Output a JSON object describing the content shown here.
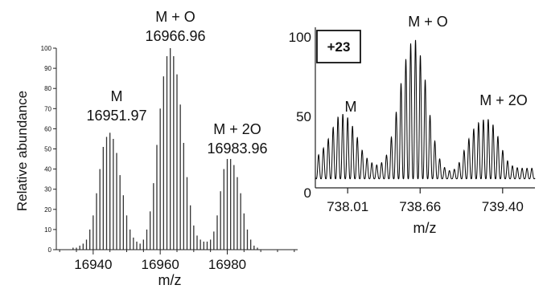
{
  "chart_data": [
    {
      "type": "bar",
      "panel": "deconvoluted",
      "xlabel": "m/z",
      "ylabel": "Relative abundance",
      "xlim": [
        16929,
        17001
      ],
      "ylim": [
        0,
        100
      ],
      "xticks": [
        16940,
        16960,
        16980
      ],
      "yticks": [
        0,
        10,
        20,
        30,
        40,
        50,
        60,
        70,
        80,
        90,
        100
      ],
      "x": [
        16930,
        16931,
        16932,
        16933,
        16934,
        16935,
        16936,
        16937,
        16938,
        16939,
        16940,
        16941,
        16942,
        16943,
        16944,
        16945,
        16946,
        16947,
        16948,
        16949,
        16950,
        16951,
        16952,
        16953,
        16954,
        16955,
        16956,
        16957,
        16958,
        16959,
        16960,
        16961,
        16962,
        16963,
        16964,
        16965,
        16966,
        16967,
        16968,
        16969,
        16970,
        16971,
        16972,
        16973,
        16974,
        16975,
        16976,
        16977,
        16978,
        16979,
        16980,
        16981,
        16982,
        16983,
        16984,
        16985,
        16986,
        16987,
        16988,
        16989,
        16990,
        16991,
        16992,
        16993,
        16994,
        16995,
        16996,
        16997,
        16998,
        16999,
        17000
      ],
      "values": [
        0,
        0,
        0,
        0,
        1,
        1,
        2,
        3,
        5,
        10,
        17,
        28,
        40,
        51,
        56,
        58,
        55,
        48,
        37,
        27,
        17,
        10,
        6,
        4,
        3,
        5,
        10,
        19,
        33,
        52,
        70,
        86,
        96,
        100,
        96,
        87,
        72,
        53,
        36,
        22,
        12,
        7,
        5,
        4,
        4,
        5,
        9,
        17,
        29,
        40,
        45,
        45,
        42,
        36,
        28,
        18,
        10,
        5,
        2,
        1,
        0,
        0,
        0,
        0,
        0,
        0,
        0,
        0,
        0,
        0,
        0
      ],
      "peak_labels": [
        {
          "name": "M",
          "mass": "16951.97"
        },
        {
          "name": "M + O",
          "mass": "16966.96"
        },
        {
          "name": "M + 2O",
          "mass": "16983.96"
        }
      ]
    },
    {
      "type": "line",
      "panel": "charge-state",
      "charge_label": "+23",
      "xlabel": "m/z",
      "xlim": [
        737.72,
        739.69
      ],
      "ylim": [
        0,
        100
      ],
      "xticks": [
        "738.01",
        "738.66",
        "739.40"
      ],
      "yticks": [
        0,
        50,
        100
      ],
      "envelope": {
        "x": [
          737.72,
          737.75,
          737.79,
          737.84,
          737.89,
          737.93,
          737.97,
          738.02,
          738.06,
          738.11,
          738.15,
          738.2,
          738.24,
          738.28,
          738.32,
          738.36,
          738.4,
          738.44,
          738.48,
          738.52,
          738.56,
          738.6,
          738.64,
          738.67,
          738.71,
          738.74,
          738.78,
          738.82,
          738.86,
          738.9,
          738.94,
          738.98,
          739.02,
          739.06,
          739.1,
          739.14,
          739.18,
          739.22,
          739.26,
          739.3,
          739.34,
          739.38,
          739.42,
          739.46,
          739.5,
          739.55,
          739.6,
          739.65,
          739.69
        ],
        "y": [
          20,
          22,
          26,
          33,
          42,
          48,
          49,
          46,
          40,
          31,
          23,
          18,
          16,
          15,
          17,
          22,
          33,
          48,
          66,
          82,
          93,
          100,
          96,
          85,
          70,
          52,
          35,
          22,
          15,
          12,
          11,
          13,
          18,
          26,
          33,
          39,
          43,
          45,
          46,
          44,
          38,
          29,
          21,
          16,
          14,
          13,
          13,
          13,
          13
        ]
      }
    }
  ],
  "labels": {
    "left_M": "M",
    "left_M_mass": "16951.97",
    "left_MO": "M + O",
    "left_MO_mass": "16966.96",
    "left_M2O": "M + 2O",
    "left_M2O_mass": "16983.96",
    "right_M": "M",
    "right_MO": "M + O",
    "right_M2O": "M + 2O"
  },
  "left_tick_labels": [
    "16940",
    "16960",
    "16980"
  ],
  "left_y_tick_labels": [
    "0",
    "10",
    "20",
    "30",
    "40",
    "50",
    "60",
    "70",
    "80",
    "90",
    "100"
  ],
  "right_tick_labels": [
    "738.01",
    "738.66",
    "739.40"
  ],
  "right_y_tick_labels": [
    "0",
    "50",
    "100"
  ],
  "left_xlabel": "m/z",
  "left_ylabel": "Relative abundance",
  "right_xlabel": "m/z",
  "charge_label": "+23"
}
